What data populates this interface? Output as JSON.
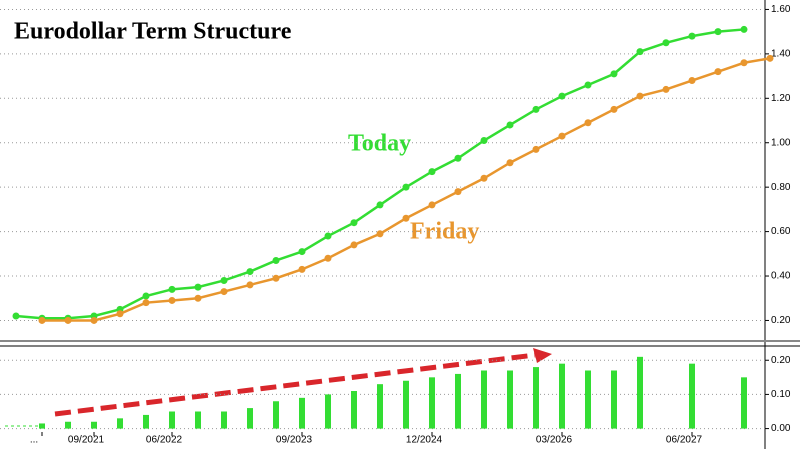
{
  "chart_data": [
    {
      "type": "line",
      "title": "Eurodollar Term Structure",
      "annotations": [
        "Today",
        "Friday"
      ],
      "series": [
        {
          "name": "Today",
          "color": "#33dd33",
          "values": [
            0.22,
            0.21,
            0.21,
            0.22,
            0.25,
            0.31,
            0.34,
            0.35,
            0.38,
            0.42,
            0.47,
            0.51,
            0.58,
            0.64,
            0.72,
            0.8,
            0.87,
            0.93,
            1.01,
            1.08,
            1.15,
            1.21,
            1.26,
            1.31,
            1.41,
            1.45,
            1.48,
            1.5,
            1.51,
            null
          ]
        },
        {
          "name": "Friday",
          "color": "#e8962e",
          "values": [
            null,
            0.2,
            0.2,
            0.2,
            0.23,
            0.28,
            0.29,
            0.3,
            0.33,
            0.36,
            0.39,
            0.43,
            0.48,
            0.54,
            0.59,
            0.66,
            0.72,
            0.78,
            0.84,
            0.91,
            0.97,
            1.03,
            1.09,
            1.15,
            1.21,
            1.24,
            1.28,
            1.32,
            1.36,
            1.38
          ]
        }
      ],
      "ylim": [
        0.13,
        1.62
      ],
      "yticks": [
        {
          "value": 0.2,
          "label": "0.20"
        },
        {
          "value": 0.4,
          "label": "0.40"
        },
        {
          "value": 0.6,
          "label": "0.60"
        },
        {
          "value": 0.8,
          "label": "0.80"
        },
        {
          "value": 1.0,
          "label": "1.00"
        },
        {
          "value": 1.2,
          "label": "1.20"
        },
        {
          "value": 1.4,
          "label": "1.40"
        },
        {
          "value": 1.6,
          "label": "1.60"
        }
      ]
    },
    {
      "type": "bar",
      "color": "#33dd33",
      "categories": [
        null,
        "...",
        null,
        "09/2021",
        null,
        null,
        "06/2022",
        null,
        null,
        null,
        null,
        "09/2023",
        null,
        null,
        null,
        null,
        "12/2024",
        null,
        null,
        null,
        null,
        "03/2026",
        null,
        null,
        null,
        null,
        "06/2027",
        null,
        null,
        null
      ],
      "values": [
        null,
        0.015,
        0.02,
        0.02,
        0.03,
        0.04,
        0.05,
        0.05,
        0.05,
        0.06,
        0.08,
        0.09,
        0.1,
        0.11,
        0.13,
        0.14,
        0.15,
        0.16,
        0.17,
        0.17,
        0.18,
        0.19,
        0.17,
        0.17,
        0.21,
        null,
        0.19,
        null,
        0.15,
        null
      ],
      "ylim": [
        -0.01,
        0.23
      ],
      "yticks": [
        {
          "value": 0,
          "label": "0.00"
        },
        {
          "value": 0.1,
          "label": "0.10"
        },
        {
          "value": 0.2,
          "label": "0.20"
        }
      ]
    }
  ]
}
